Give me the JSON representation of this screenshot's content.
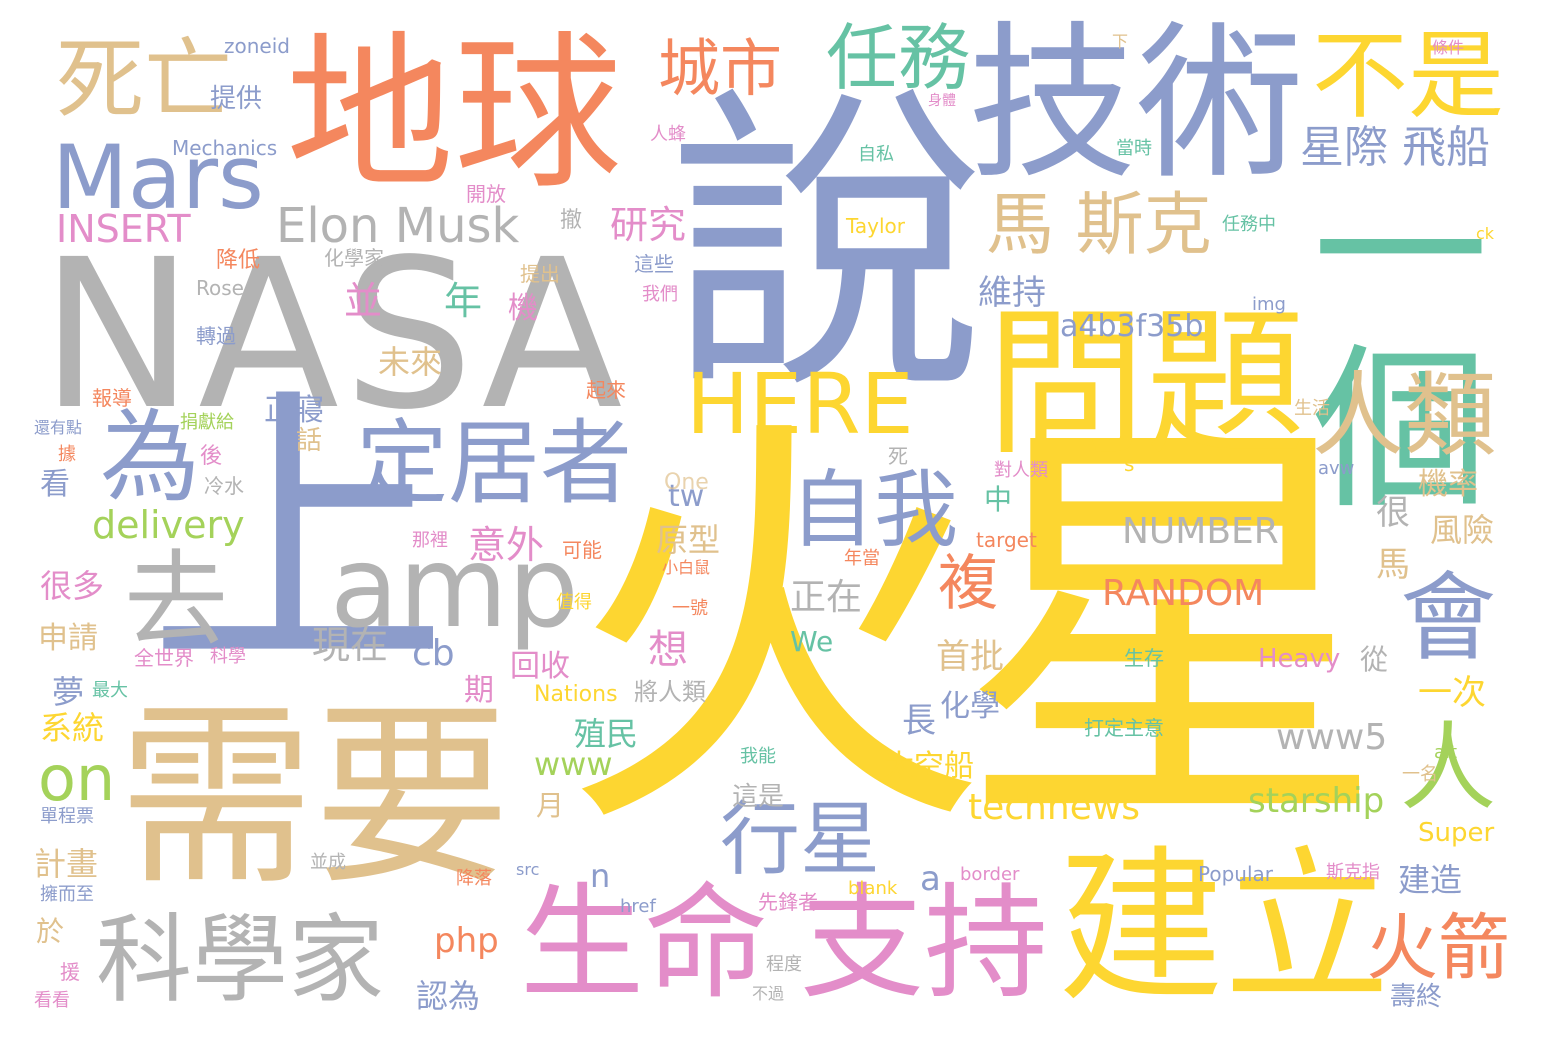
{
  "words": {
    "nasa": "NASA",
    "shuo": "說",
    "huoxing": "火星",
    "diqiu": "地球",
    "jishu": "技術",
    "shang": "上",
    "xuyao": "需要",
    "yige": "一個",
    "wenti": "問題",
    "jianli": "建立",
    "shengming": "生命",
    "zhichi": "支持",
    "kexuejia": "科學家",
    "amp": "amp",
    "dingjuzhe": "定居者",
    "mars": "Mars",
    "siwang": "死亡",
    "chengshi": "城市",
    "renwu": "任務",
    "bushi": "不是",
    "here": "HERE",
    "renlei": "人類",
    "ziwo": "自我",
    "wei": "為",
    "qu": "去",
    "elon": "Elon Musk",
    "masike": "馬 斯克",
    "xingji": "星際 飛船",
    "hui": "會",
    "ren": "人",
    "xingxing": "行星",
    "huojian": "火箭",
    "on": "on",
    "delivery": "delivery",
    "insert": "INSERT",
    "number": "NUMBER",
    "random": "RANDOM",
    "a4b": "a4b3f35b",
    "technews": "technews",
    "starship": "starship",
    "www5": "www5",
    "www": "www",
    "fu": "複",
    "yanjiu": "研究",
    "tigong": "提供",
    "mechanics": "Mechanics",
    "zoneid": "zoneid",
    "weichi": "維持",
    "bing": "並",
    "nian": "年",
    "ji": "機",
    "weilai": "未來",
    "zhengqin": "正寢",
    "hua": "話",
    "kan": "看",
    "yiwai": "意外",
    "tw": "tw",
    "one": "One",
    "yuanxing": "原型",
    "zhengzai": "正在",
    "xianzai": "現在",
    "cb": "cb",
    "xiang": "想",
    "huishou": "回收",
    "qi": "期",
    "zhimin": "殖民",
    "chang": "長",
    "huaxue": "化學",
    "shoupi": "首批",
    "taikongchuan": "太空船",
    "zheshi": "這是",
    "yue": "月",
    "php": "php",
    "n": "n",
    "a": "a",
    "renzhi": "認為",
    "jilv": "機率",
    "fengxian": "風險",
    "hen": "很",
    "ma": "馬",
    "yici": "一次",
    "jianzao": "建造",
    "shouzhong": "壽終",
    "super": "Super",
    "heavy": "Heavy",
    "cong": "從",
    "zhong": "中",
    "henduo": "很多",
    "shenqing": "申請",
    "meng": "夢",
    "xitong": "系統",
    "jihua": "計畫",
    "yu": "於",
    "zui_da": "最大",
    "quan_shijie": "全世界",
    "kexue": "科學",
    "we": "We",
    "nations": "Nations",
    "jiangrenlei": "將人類",
    "yihao": "一號",
    "xiaobaishu": "小白鼠",
    "keneng": "可能",
    "nali": "那裡",
    "nianchang": "年當",
    "lengshui": "冷水",
    "hou": "後",
    "ju": "據",
    "si": "死",
    "duirenlei": "對人類",
    "s": "s",
    "avw": "avw",
    "target": "target",
    "shengcun": "生存",
    "dadingzhuyi": "打定主意",
    "woneng": "我能",
    "alt": "alt",
    "yiming": "一名",
    "shenghuo": "生活",
    "qilai": "起來",
    "juankuanhe": "捐獻給",
    "bao_dao": "報導",
    "haiyoudian": "還有點",
    "jiangdi": "降低",
    "huaxuejia": "化學家",
    "rose": "Rose",
    "zhuan_guo": "轉過",
    "tichu": "提出",
    "zhexie": "這些",
    "women": "我們",
    "img": "img",
    "taylor": "Taylor",
    "renwuzhong": "任務中",
    "ck": "ck",
    "kaifang": "開放",
    "ziyi": "自私",
    "dangshi": "當時",
    "tiaojian": "條件",
    "renfeng": "人蜂",
    "xia": "下",
    "border": "border",
    "popular": "Popular",
    "sikezhi": "斯克指",
    "blank": "blank",
    "href": "href",
    "src": "src",
    "xianfengzhe": "先鋒者",
    "chengdu": "程度",
    "buguo": "不過",
    "bingcheng": "並成",
    "yongerzhi": "擁而至",
    "danchengpiao": "單程票",
    "yuan": "援",
    "kankan": "看看",
    "xinde": "值得",
    "xiaoliang": "降落",
    "shenti": "身體",
    "chedi": "撤"
  },
  "colors": {
    "orange": "#f4875e",
    "blue": "#8c9ccb",
    "green": "#66c2a4",
    "tan": "#e0c18d",
    "yellow": "#fdd631",
    "gray": "#b3b3b3",
    "pink": "#e38dc9",
    "lime": "#a4d25a"
  }
}
